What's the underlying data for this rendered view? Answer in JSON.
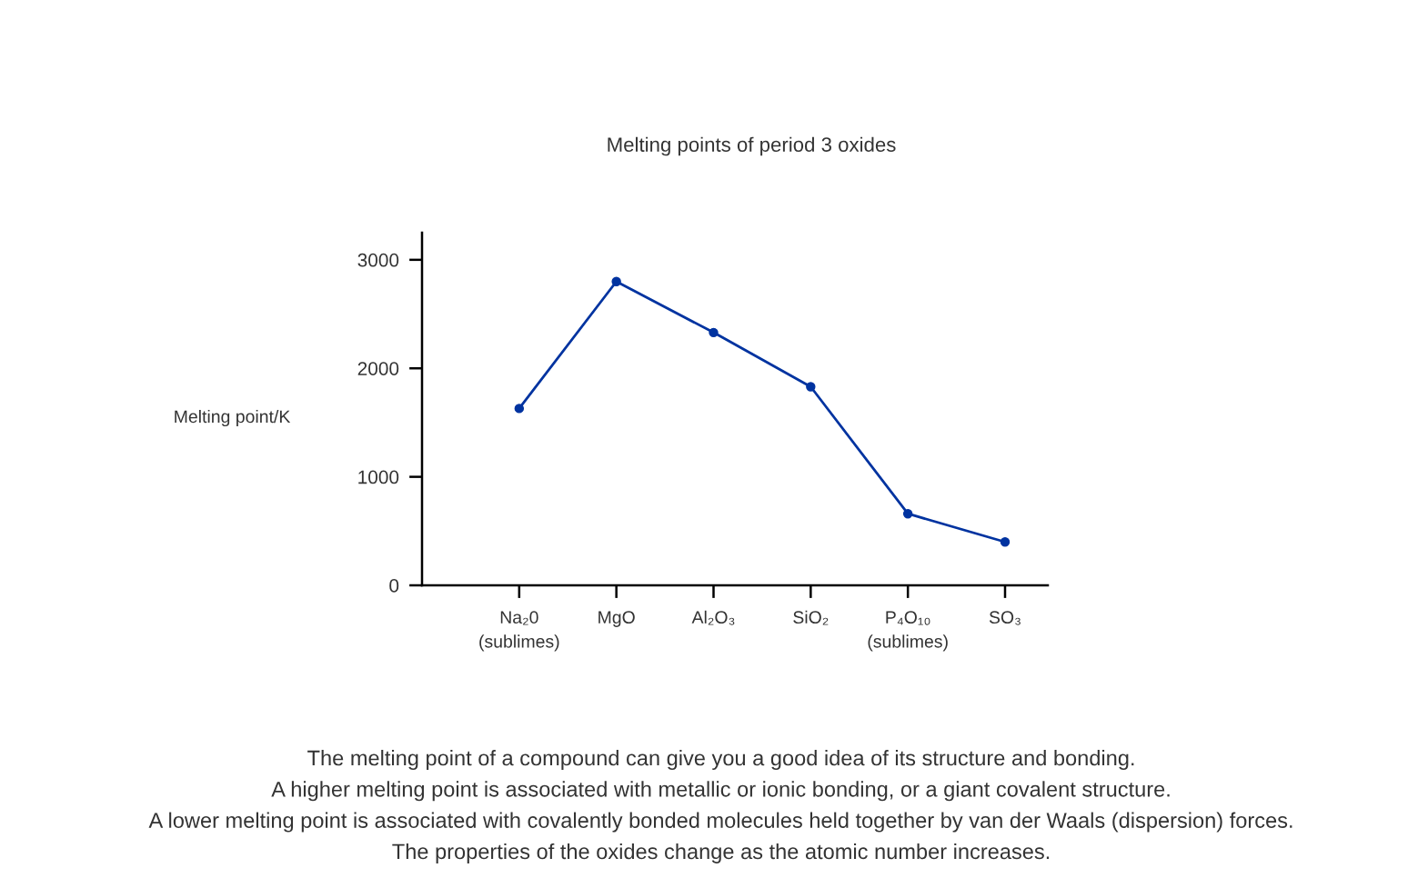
{
  "chart_data": {
    "type": "line",
    "title": "Melting points of period 3 oxides",
    "ylabel": "Melting point/K",
    "categories": [
      "Na₂0\n(sublimes)",
      "MgO",
      "Al₂O₃",
      "SiO₂",
      "P₄O₁₀\n(sublimes)",
      "SO₃"
    ],
    "series": [
      {
        "color": "#0033a0",
        "values": [
          1630,
          2800,
          2330,
          1830,
          660,
          400
        ]
      }
    ],
    "ylim": [
      0,
      3250
    ],
    "yticks": [
      0,
      1000,
      2000,
      3000
    ],
    "marker": "circle",
    "line_style": "solid",
    "grid": false,
    "annotations": [
      "The melting point of a compound can give you a good idea of its structure and bonding.",
      "A higher melting point is associated with metallic or ionic bonding, or a giant covalent structure.",
      "A lower melting point is associated with covalently bonded molecules held together by van der Waals (dispersion) forces.",
      "The properties of the oxides change as the atomic number increases."
    ]
  }
}
